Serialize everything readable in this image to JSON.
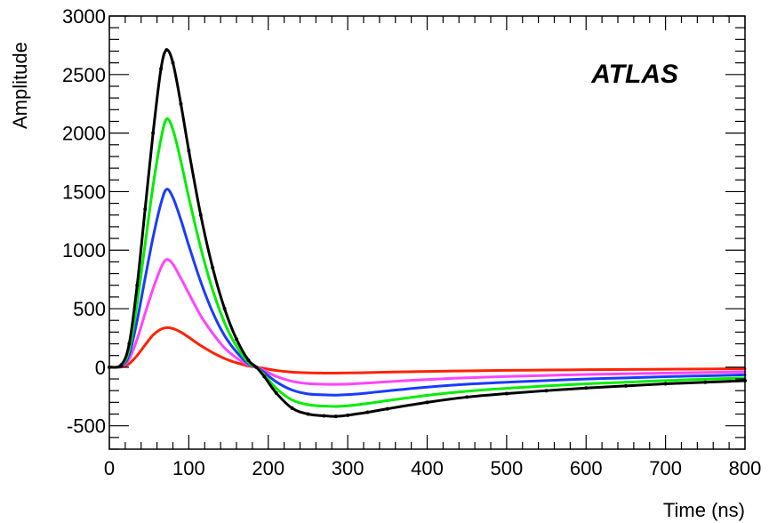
{
  "chart_data": {
    "type": "line",
    "title": "",
    "xlabel": "Time (ns)",
    "ylabel": "Amplitude",
    "xlim": [
      0,
      800
    ],
    "ylim": [
      -700,
      3000
    ],
    "xticks": [
      "0",
      "100",
      "200",
      "300",
      "400",
      "500",
      "600",
      "700",
      "800"
    ],
    "yticks": [
      "-500",
      "0",
      "500",
      "1000",
      "1500",
      "2000",
      "2500",
      "3000"
    ],
    "annotation": "ATLAS",
    "grid": false,
    "legend": "none",
    "x": [
      0,
      15,
      25,
      35,
      45,
      55,
      65,
      72,
      80,
      90,
      100,
      115,
      130,
      145,
      160,
      175,
      185,
      195,
      210,
      230,
      250,
      270,
      285,
      300,
      325,
      350,
      400,
      450,
      500,
      550,
      600,
      650,
      700,
      750,
      800
    ],
    "series": [
      {
        "color": "#000000",
        "markers": true,
        "values": [
          0,
          20,
          200,
          700,
          1350,
          2000,
          2550,
          2710,
          2600,
          2250,
          1850,
          1300,
          850,
          500,
          240,
          60,
          0,
          -80,
          -220,
          -350,
          -400,
          -415,
          -420,
          -410,
          -385,
          -355,
          -300,
          -255,
          -225,
          -200,
          -178,
          -160,
          -142,
          -128,
          -115
        ]
      },
      {
        "color": "#00ee00",
        "markers": false,
        "values": [
          0,
          15,
          150,
          550,
          1050,
          1550,
          1950,
          2120,
          2030,
          1760,
          1450,
          1020,
          660,
          380,
          180,
          40,
          0,
          -65,
          -180,
          -280,
          -320,
          -332,
          -335,
          -330,
          -310,
          -285,
          -240,
          -205,
          -180,
          -160,
          -142,
          -128,
          -114,
          -102,
          -92
        ]
      },
      {
        "color": "#1a3bff",
        "markers": false,
        "values": [
          0,
          10,
          110,
          400,
          760,
          1110,
          1400,
          1520,
          1450,
          1260,
          1040,
          730,
          470,
          270,
          130,
          30,
          0,
          -45,
          -125,
          -195,
          -228,
          -236,
          -238,
          -234,
          -220,
          -202,
          -170,
          -145,
          -128,
          -114,
          -101,
          -91,
          -81,
          -73,
          -65
        ]
      },
      {
        "color": "#ff44ff",
        "markers": false,
        "values": [
          0,
          5,
          70,
          240,
          460,
          670,
          850,
          920,
          880,
          760,
          630,
          440,
          290,
          165,
          80,
          18,
          0,
          -28,
          -78,
          -120,
          -140,
          -145,
          -146,
          -144,
          -135,
          -124,
          -105,
          -90,
          -79,
          -70,
          -62,
          -56,
          -50,
          -45,
          -40
        ]
      },
      {
        "color": "#ff2200",
        "markers": false,
        "values": [
          0,
          2,
          30,
          100,
          190,
          275,
          325,
          338,
          330,
          300,
          255,
          185,
          125,
          75,
          38,
          10,
          0,
          -10,
          -28,
          -42,
          -48,
          -50,
          -50,
          -49,
          -46,
          -42,
          -36,
          -31,
          -27,
          -24,
          -21,
          -19,
          -17,
          -15,
          -13
        ]
      }
    ]
  }
}
